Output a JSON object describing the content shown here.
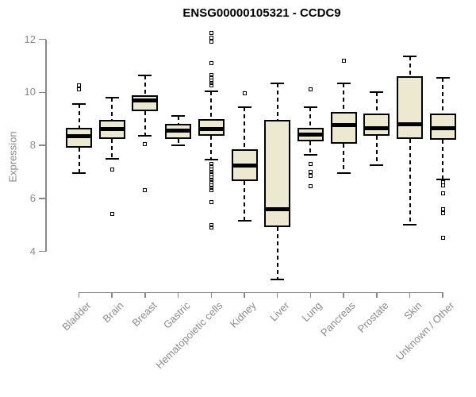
{
  "chart_data": {
    "type": "boxplot",
    "title": "ENSG00000105321 - CCDC9",
    "ylabel": "Expression",
    "xlabel": "",
    "ylim": [
      4,
      12
    ],
    "yticks": [
      "4",
      "6",
      "8",
      "10",
      "12"
    ],
    "grid": false,
    "legend": "none",
    "categories": [
      "Bladder",
      "Brain",
      "Breast",
      "Gastric",
      "Hematopoietic cells",
      "Kidney",
      "Liver",
      "Lung",
      "Pancreas",
      "Prostate",
      "Skin",
      "Unknown / Other"
    ],
    "series": [
      {
        "name": "Bladder",
        "whisker_low": 6.95,
        "q1": 7.9,
        "median": 8.35,
        "q3": 8.65,
        "whisker_high": 9.55,
        "outliers": [
          10.1,
          10.25
        ]
      },
      {
        "name": "Brain",
        "whisker_low": 7.5,
        "q1": 8.25,
        "median": 8.6,
        "q3": 8.95,
        "whisker_high": 9.8,
        "outliers": [
          7.1,
          5.4
        ]
      },
      {
        "name": "Breast",
        "whisker_low": 8.35,
        "q1": 9.3,
        "median": 9.7,
        "q3": 9.9,
        "whisker_high": 10.65,
        "outliers": [
          8.05,
          6.3
        ]
      },
      {
        "name": "Gastric",
        "whisker_low": 8.0,
        "q1": 8.25,
        "median": 8.55,
        "q3": 8.8,
        "whisker_high": 9.1,
        "outliers": []
      },
      {
        "name": "Hematopoietic cells",
        "whisker_low": 7.45,
        "q1": 8.35,
        "median": 8.62,
        "q3": 9.0,
        "whisker_high": 10.05,
        "outliers": [
          12.25,
          12.05,
          11.9,
          11.1,
          10.65,
          10.55,
          10.45,
          10.35,
          10.25,
          7.3,
          7.2,
          7.1,
          7.0,
          6.9,
          6.8,
          6.7,
          6.6,
          6.5,
          6.4,
          6.3,
          5.85,
          5.0,
          4.9
        ]
      },
      {
        "name": "Kidney",
        "whisker_low": 5.15,
        "q1": 6.65,
        "median": 7.25,
        "q3": 7.85,
        "whisker_high": 9.45,
        "outliers": [
          9.95
        ]
      },
      {
        "name": "Liver",
        "whisker_low": 2.95,
        "q1": 4.9,
        "median": 5.6,
        "q3": 8.95,
        "whisker_high": 10.35,
        "outliers": []
      },
      {
        "name": "Lung",
        "whisker_low": 7.65,
        "q1": 8.15,
        "median": 8.4,
        "q3": 8.65,
        "whisker_high": 9.45,
        "outliers": [
          10.1,
          7.3,
          7.0,
          6.85,
          6.45
        ]
      },
      {
        "name": "Pancreas",
        "whisker_low": 6.95,
        "q1": 8.05,
        "median": 8.75,
        "q3": 9.25,
        "whisker_high": 10.35,
        "outliers": [
          11.2
        ]
      },
      {
        "name": "Prostate",
        "whisker_low": 7.25,
        "q1": 8.35,
        "median": 8.65,
        "q3": 9.2,
        "whisker_high": 10.0,
        "outliers": []
      },
      {
        "name": "Skin",
        "whisker_low": 5.0,
        "q1": 8.25,
        "median": 8.8,
        "q3": 10.6,
        "whisker_high": 11.35,
        "outliers": []
      },
      {
        "name": "Unknown / Other",
        "whisker_low": 6.7,
        "q1": 8.2,
        "median": 8.65,
        "q3": 9.2,
        "whisker_high": 10.55,
        "outliers": [
          6.6,
          6.5,
          6.2,
          5.6,
          5.45,
          4.5
        ]
      }
    ],
    "colors": {
      "box_fill": "#EDE8D0",
      "box_border": "#000000",
      "median": "#000000",
      "whisker": "#000000",
      "axis_line": "#888888",
      "axis_text": "#8a8a8a",
      "title_text": "#000000",
      "background": "#ffffff"
    }
  }
}
